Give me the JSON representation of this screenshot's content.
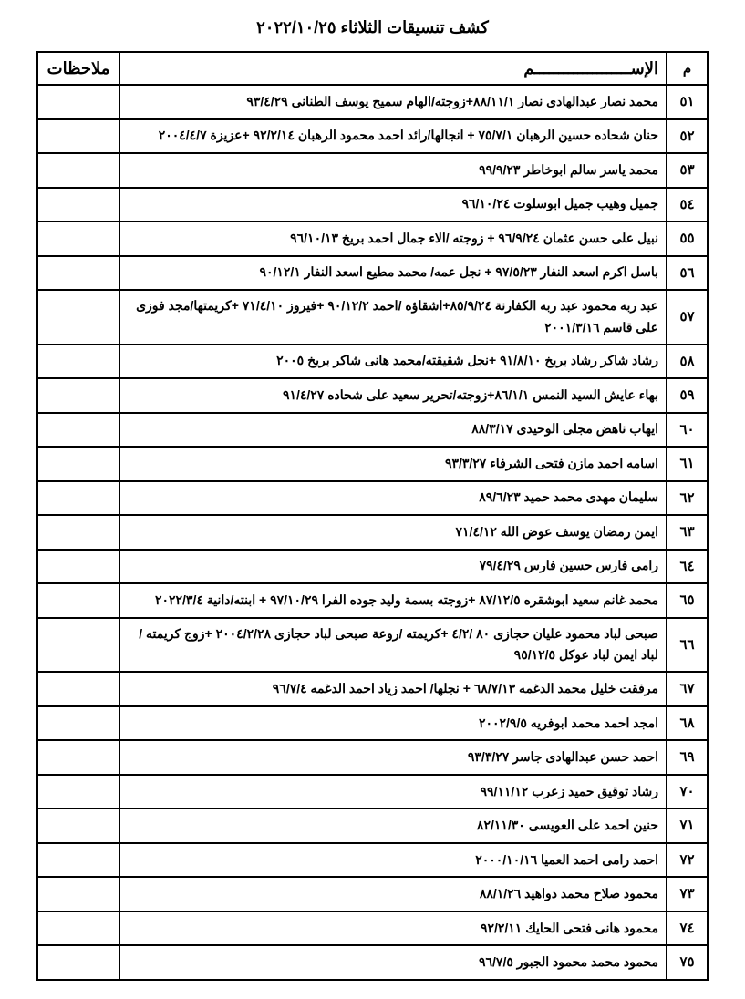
{
  "title": "كشف تنسيقات الثلاثاء  ٢٠٢٢/١٠/٢٥",
  "headers": {
    "num": "م",
    "name": "الإســــــــــــــــــــم",
    "notes": "ملاحظات"
  },
  "rows": [
    {
      "num": "٥١",
      "name": "محمد نصار عبدالهادى نصار ٨٨/١١/١+زوجته/الهام سميح يوسف الطنانى ٩٣/٤/٢٩",
      "notes": ""
    },
    {
      "num": "٥٢",
      "name": "حنان شحاده حسين الرهبان ٧٥/٧/١ + انجالها/رائد احمد محمود الرهبان ٩٢/٢/١٤ +عزيزة ٢٠٠٤/٤/٧",
      "notes": ""
    },
    {
      "num": "٥٣",
      "name": "محمد ياسر سالم ابوخاطر ٩٩/٩/٢٣",
      "notes": ""
    },
    {
      "num": "٥٤",
      "name": "جميل وهيب جميل ابوسلوت ٩٦/١٠/٢٤",
      "notes": ""
    },
    {
      "num": "٥٥",
      "name": "نبيل على حسن عثمان ٩٦/٩/٢٤ + زوجته /الاء جمال احمد بريخ ٩٦/١٠/١٣",
      "notes": ""
    },
    {
      "num": "٥٦",
      "name": "باسل اكرم اسعد النفار ٩٧/٥/٢٣ + نجل عمه/ محمد مطيع اسعد النفار ٩٠/١٢/١",
      "notes": ""
    },
    {
      "num": "٥٧",
      "name": "عبد ربه محمود عبد ربه الكفارنة ٨٥/٩/٢٤+اشقاؤه /احمد ٩٠/١٢/٢ +فيروز ٧١/٤/١٠ +كريمتها/مجد فوزى على قاسم ٢٠٠١/٣/١٦",
      "notes": ""
    },
    {
      "num": "٥٨",
      "name": "رشاد شاكر رشاد بريخ  ٩١/٨/١٠ +نجل شقيقته/محمد هانى شاكر بريخ ٢٠٠٥",
      "notes": ""
    },
    {
      "num": "٥٩",
      "name": "بهاء عايش السيد النمس ٨٦/١/١+زوجته/تحرير سعيد على شحاده ٩١/٤/٢٧",
      "notes": ""
    },
    {
      "num": "٦٠",
      "name": "ايهاب ناهض مجلى الوحيدى ٨٨/٣/١٧",
      "notes": ""
    },
    {
      "num": "٦١",
      "name": "اسامه احمد مازن فتحى الشرفاء ٩٣/٣/٢٧",
      "notes": ""
    },
    {
      "num": "٦٢",
      "name": "سليمان مهدى محمد حميد ٨٩/٦/٢٣",
      "notes": ""
    },
    {
      "num": "٦٣",
      "name": "ايمن رمضان يوسف عوض الله ٧١/٤/١٢",
      "notes": ""
    },
    {
      "num": "٦٤",
      "name": "رامى فارس حسين فارس ٧٩/٤/٢٩",
      "notes": ""
    },
    {
      "num": "٦٥",
      "name": "محمد غانم سعيد ابوشقره ٨٧/١٢/٥ +زوجته بسمة وليد جوده الفرا ٩٧/١٠/٢٩ + ابنته/دانية ٢٠٢٢/٣/٤",
      "notes": ""
    },
    {
      "num": "٦٦",
      "name": "صبحى لباد محمود عليان حجازى ٨٠ /٤/٢ +كريمته /روعة صبحى لباد حجازى ٢٠٠٤/٢/٢٨ +زوج كريمته / لباد ايمن لباد عوكل ٩٥/١٢/٥",
      "notes": ""
    },
    {
      "num": "٦٧",
      "name": "مرفقت خليل محمد الدغمه ٦٨/٧/١٣ + نجلها/ احمد زياد احمد الدغمه ٩٦/٧/٤",
      "notes": ""
    },
    {
      "num": "٦٨",
      "name": "امجد احمد محمد ابوفريه ٢٠٠٢/٩/٥",
      "notes": ""
    },
    {
      "num": "٦٩",
      "name": "احمد حسن عبدالهادى جاسر ٩٣/٣/٢٧",
      "notes": ""
    },
    {
      "num": "٧٠",
      "name": "رشاد توقيق حميد زعرب ٩٩/١١/١٢",
      "notes": ""
    },
    {
      "num": "٧١",
      "name": "حنين احمد على العويسى ٨٢/١١/٣٠",
      "notes": ""
    },
    {
      "num": "٧٢",
      "name": "احمد رامى احمد العميا ٢٠٠٠/١٠/١٦",
      "notes": ""
    },
    {
      "num": "٧٣",
      "name": "محمود صلاح محمد دواهيد ٨٨/١/٢٦",
      "notes": ""
    },
    {
      "num": "٧٤",
      "name": "محمود هانى فتحى الحايك ٩٢/٢/١١",
      "notes": ""
    },
    {
      "num": "٧٥",
      "name": "محمود محمد محمود الجبور ٩٦/٧/٥",
      "notes": ""
    }
  ]
}
